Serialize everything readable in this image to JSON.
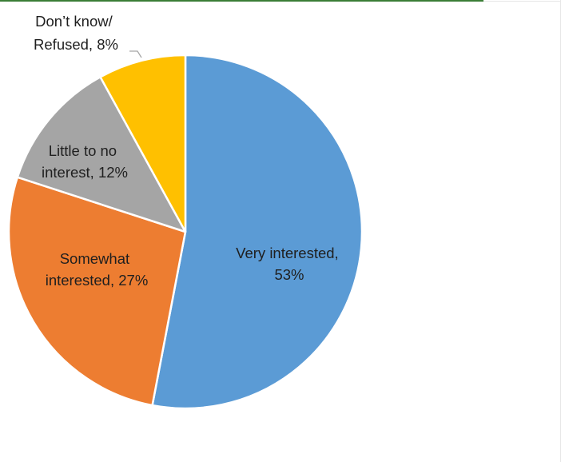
{
  "chart_data": {
    "type": "pie",
    "title": "",
    "start_angle_deg": 0,
    "direction": "clockwise",
    "legend": "none",
    "slices": [
      {
        "name": "Very interested",
        "value": 53,
        "label_lines": [
          "Very interested,",
          "53%"
        ],
        "color": "#5b9bd5"
      },
      {
        "name": "Somewhat interested",
        "value": 27,
        "label_lines": [
          "Somewhat",
          "interested, 27%"
        ],
        "color": "#ed7d31"
      },
      {
        "name": "Little to no interest",
        "value": 12,
        "label_lines": [
          "Little to no",
          "interest, 12%"
        ],
        "color": "#a5a5a5"
      },
      {
        "name": "Don’t know/ Refused",
        "value": 8,
        "label_lines": [
          "Don’t know/",
          "Refused, 8%"
        ],
        "color": "#ffc000"
      }
    ]
  }
}
